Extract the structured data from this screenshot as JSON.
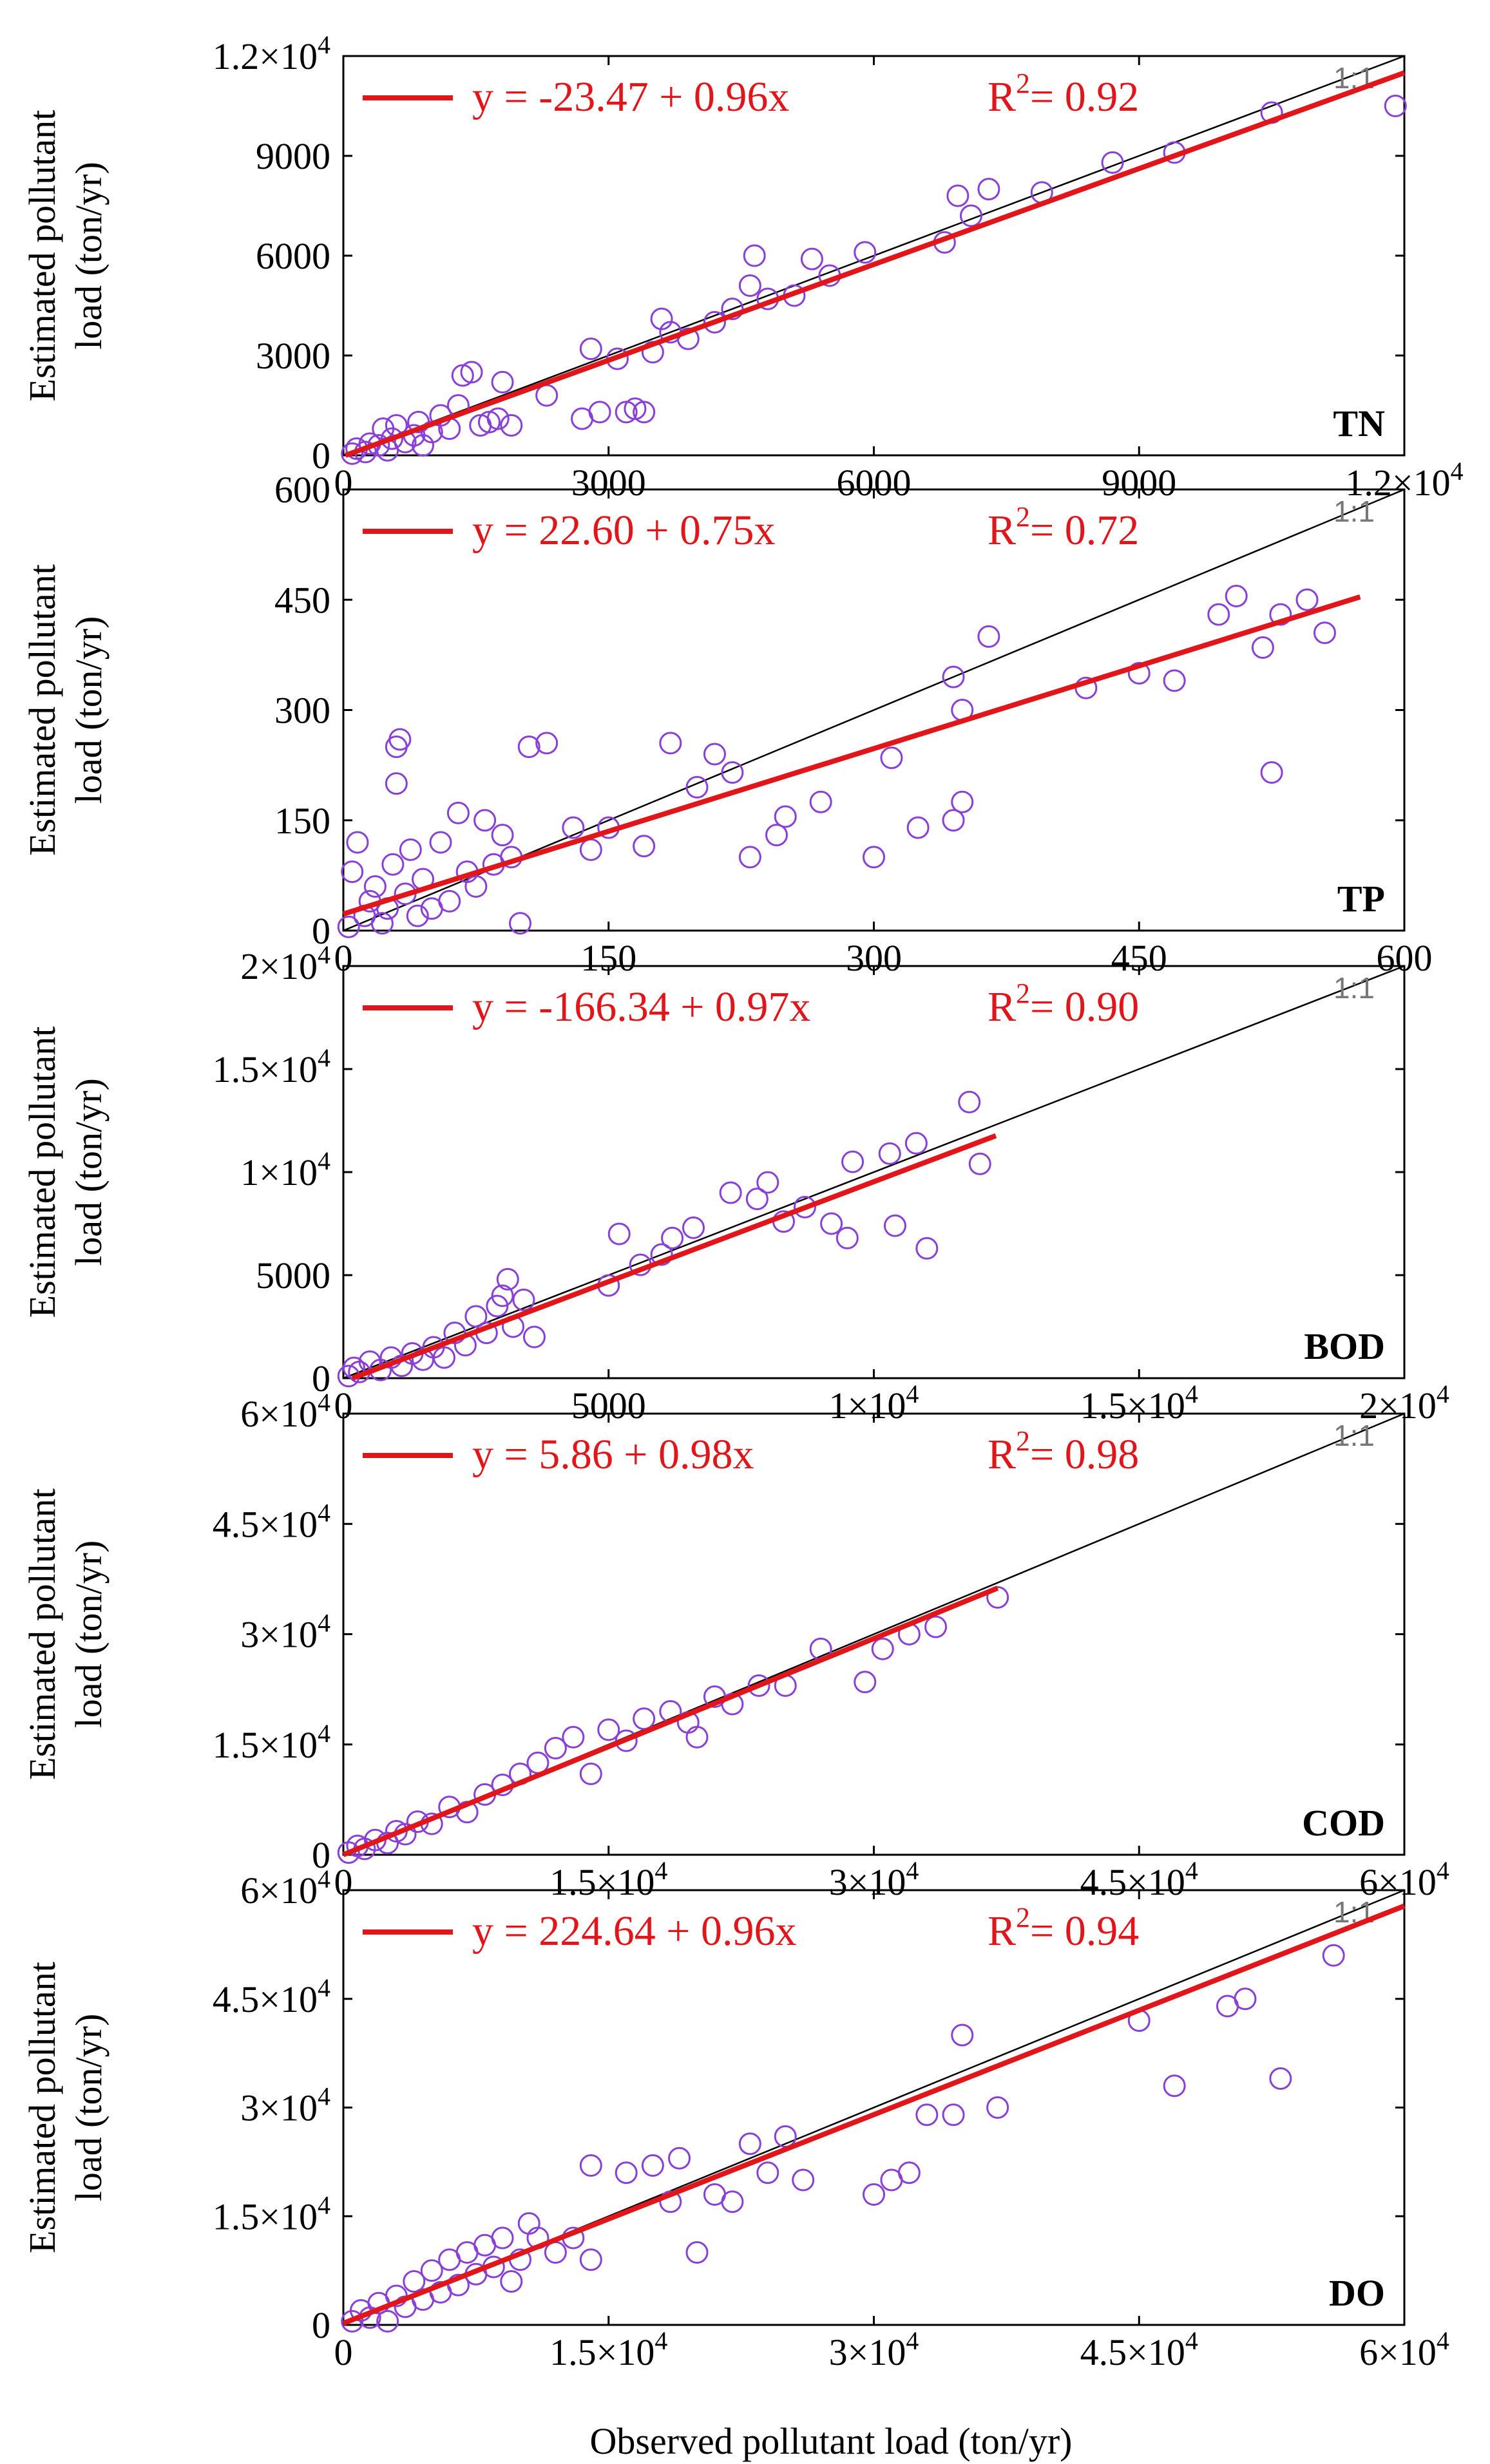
{
  "x_axis_label": "Observed pollutant load (ton/yr)",
  "colors": {
    "points": "#8a3fd6",
    "fit_line": "#e0161b",
    "one_to_one": "#000000"
  },
  "chart_data": [
    {
      "type": "scatter",
      "pollutant": "TN",
      "one_to_one_label": "1:1",
      "ylabel": "Estimated pollutant load (ton/yr)",
      "xlim": [
        0,
        12000
      ],
      "ylim": [
        0,
        12000
      ],
      "xticks": [
        0,
        3000,
        6000,
        9000,
        12000
      ],
      "xtick_labels": [
        "0",
        "3000",
        "6000",
        "9000",
        "1.2×10^4"
      ],
      "yticks": [
        0,
        3000,
        6000,
        9000,
        12000
      ],
      "ytick_labels": [
        "0",
        "3000",
        "6000",
        "9000",
        "1.2×10^4"
      ],
      "fit": {
        "intercept": -23.47,
        "slope": 0.96,
        "x_end": 12000
      },
      "equation": "y = -23.47 + 0.96x",
      "r2": "0.92",
      "points": [
        [
          100,
          50
        ],
        [
          150,
          200
        ],
        [
          250,
          100
        ],
        [
          300,
          350
        ],
        [
          400,
          300
        ],
        [
          450,
          800
        ],
        [
          500,
          150
        ],
        [
          550,
          500
        ],
        [
          600,
          900
        ],
        [
          700,
          400
        ],
        [
          800,
          600
        ],
        [
          850,
          1000
        ],
        [
          900,
          300
        ],
        [
          1000,
          700
        ],
        [
          1100,
          1200
        ],
        [
          1200,
          800
        ],
        [
          1300,
          1500
        ],
        [
          1350,
          2400
        ],
        [
          1450,
          2500
        ],
        [
          1550,
          900
        ],
        [
          1650,
          1000
        ],
        [
          1750,
          1100
        ],
        [
          1800,
          2200
        ],
        [
          1900,
          900
        ],
        [
          2300,
          1800
        ],
        [
          2700,
          1100
        ],
        [
          2800,
          3200
        ],
        [
          2900,
          1300
        ],
        [
          3100,
          2900
        ],
        [
          3200,
          1300
        ],
        [
          3300,
          1400
        ],
        [
          3400,
          1300
        ],
        [
          3500,
          3100
        ],
        [
          3600,
          4100
        ],
        [
          3700,
          3700
        ],
        [
          3900,
          3500
        ],
        [
          4200,
          4000
        ],
        [
          4400,
          4400
        ],
        [
          4600,
          5100
        ],
        [
          4650,
          6000
        ],
        [
          4800,
          4700
        ],
        [
          5100,
          4800
        ],
        [
          5300,
          5900
        ],
        [
          5500,
          5400
        ],
        [
          5900,
          6100
        ],
        [
          6800,
          6400
        ],
        [
          6950,
          7800
        ],
        [
          7100,
          7200
        ],
        [
          7300,
          8000
        ],
        [
          7900,
          7900
        ],
        [
          8700,
          8800
        ],
        [
          9400,
          9100
        ],
        [
          10500,
          10300
        ],
        [
          11900,
          10500
        ]
      ]
    },
    {
      "type": "scatter",
      "pollutant": "TP",
      "one_to_one_label": "1:1",
      "ylabel": "Estimated pollutant load (ton/yr)",
      "xlim": [
        0,
        600
      ],
      "ylim": [
        0,
        600
      ],
      "xticks": [
        0,
        150,
        300,
        450,
        600
      ],
      "xtick_labels": [
        "0",
        "150",
        "300",
        "450",
        "600"
      ],
      "yticks": [
        0,
        150,
        300,
        450,
        600
      ],
      "ytick_labels": [
        "0",
        "150",
        "300",
        "450",
        "600"
      ],
      "fit": {
        "intercept": 22.6,
        "slope": 0.75,
        "x_end": 575
      },
      "equation": "y = 22.60 + 0.75x",
      "r2": "0.72",
      "points": [
        [
          3,
          5
        ],
        [
          5,
          80
        ],
        [
          8,
          120
        ],
        [
          12,
          20
        ],
        [
          15,
          40
        ],
        [
          18,
          60
        ],
        [
          22,
          10
        ],
        [
          25,
          30
        ],
        [
          28,
          90
        ],
        [
          30,
          200
        ],
        [
          30,
          250
        ],
        [
          32,
          260
        ],
        [
          35,
          50
        ],
        [
          38,
          110
        ],
        [
          42,
          20
        ],
        [
          45,
          70
        ],
        [
          50,
          30
        ],
        [
          55,
          120
        ],
        [
          60,
          40
        ],
        [
          65,
          160
        ],
        [
          70,
          80
        ],
        [
          75,
          60
        ],
        [
          80,
          150
        ],
        [
          85,
          90
        ],
        [
          90,
          130
        ],
        [
          95,
          100
        ],
        [
          100,
          10
        ],
        [
          105,
          250
        ],
        [
          115,
          255
        ],
        [
          130,
          140
        ],
        [
          140,
          110
        ],
        [
          150,
          140
        ],
        [
          170,
          115
        ],
        [
          185,
          255
        ],
        [
          200,
          195
        ],
        [
          210,
          240
        ],
        [
          220,
          215
        ],
        [
          230,
          100
        ],
        [
          245,
          130
        ],
        [
          250,
          155
        ],
        [
          270,
          175
        ],
        [
          300,
          100
        ],
        [
          310,
          235
        ],
        [
          325,
          140
        ],
        [
          345,
          150
        ],
        [
          345,
          345
        ],
        [
          350,
          300
        ],
        [
          350,
          175
        ],
        [
          365,
          400
        ],
        [
          420,
          330
        ],
        [
          450,
          350
        ],
        [
          470,
          340
        ],
        [
          495,
          430
        ],
        [
          505,
          455
        ],
        [
          520,
          385
        ],
        [
          525,
          215
        ],
        [
          530,
          430
        ],
        [
          545,
          450
        ],
        [
          555,
          405
        ]
      ]
    },
    {
      "type": "scatter",
      "pollutant": "BOD",
      "one_to_one_label": "1:1",
      "ylabel": "Estimated pollutant load (ton/yr)",
      "xlim": [
        0,
        20000
      ],
      "ylim": [
        0,
        20000
      ],
      "xticks": [
        0,
        5000,
        10000,
        15000,
        20000
      ],
      "xtick_labels": [
        "0",
        "5000",
        "1×10^4",
        "1.5×10^4",
        "2×10^4"
      ],
      "yticks": [
        0,
        5000,
        10000,
        15000,
        20000
      ],
      "ytick_labels": [
        "0",
        "5000",
        "1×10^4",
        "1.5×10^4",
        "2×10^4"
      ],
      "fit": {
        "intercept": -166.34,
        "slope": 0.97,
        "x_end": 12300
      },
      "equation": "y = -166.34 + 0.97x",
      "r2": "0.90",
      "points": [
        [
          100,
          100
        ],
        [
          200,
          500
        ],
        [
          300,
          300
        ],
        [
          500,
          800
        ],
        [
          700,
          400
        ],
        [
          900,
          1000
        ],
        [
          1100,
          600
        ],
        [
          1300,
          1200
        ],
        [
          1500,
          900
        ],
        [
          1700,
          1500
        ],
        [
          1900,
          1000
        ],
        [
          2100,
          2200
        ],
        [
          2300,
          1600
        ],
        [
          2500,
          3000
        ],
        [
          2700,
          2200
        ],
        [
          2900,
          3500
        ],
        [
          3000,
          4000
        ],
        [
          3100,
          4800
        ],
        [
          3200,
          2500
        ],
        [
          3400,
          3800
        ],
        [
          3600,
          2000
        ],
        [
          5000,
          4500
        ],
        [
          5200,
          7000
        ],
        [
          5600,
          5500
        ],
        [
          6000,
          6000
        ],
        [
          6200,
          6800
        ],
        [
          6600,
          7300
        ],
        [
          7300,
          9000
        ],
        [
          7800,
          8700
        ],
        [
          8000,
          9500
        ],
        [
          8300,
          7600
        ],
        [
          8700,
          8300
        ],
        [
          9200,
          7500
        ],
        [
          9500,
          6800
        ],
        [
          9600,
          10500
        ],
        [
          10300,
          10900
        ],
        [
          10400,
          7400
        ],
        [
          10800,
          11400
        ],
        [
          11000,
          6300
        ],
        [
          11800,
          13400
        ],
        [
          12000,
          10400
        ]
      ]
    },
    {
      "type": "scatter",
      "pollutant": "COD",
      "one_to_one_label": "1:1",
      "ylabel": "Estimated pollutant load (ton/yr)",
      "xlim": [
        0,
        60000
      ],
      "ylim": [
        0,
        60000
      ],
      "xticks": [
        0,
        15000,
        30000,
        45000,
        60000
      ],
      "xtick_labels": [
        "0",
        "1.5×10^4",
        "3×10^4",
        "4.5×10^4",
        "6×10^4"
      ],
      "yticks": [
        0,
        15000,
        30000,
        45000,
        60000
      ],
      "ytick_labels": [
        "0",
        "1.5×10^4",
        "3×10^4",
        "4.5×10^4",
        "6×10^4"
      ],
      "fit": {
        "intercept": 5.86,
        "slope": 0.98,
        "x_end": 37000
      },
      "equation": "y = 5.86 + 0.98x",
      "r2": "0.98",
      "points": [
        [
          300,
          300
        ],
        [
          800,
          1200
        ],
        [
          1200,
          800
        ],
        [
          1800,
          2000
        ],
        [
          2500,
          1600
        ],
        [
          3000,
          3200
        ],
        [
          3500,
          2800
        ],
        [
          4200,
          4500
        ],
        [
          5000,
          4200
        ],
        [
          6000,
          6500
        ],
        [
          7000,
          5800
        ],
        [
          8000,
          8200
        ],
        [
          9000,
          9500
        ],
        [
          10000,
          11000
        ],
        [
          11000,
          12500
        ],
        [
          12000,
          14500
        ],
        [
          13000,
          16000
        ],
        [
          14000,
          11000
        ],
        [
          15000,
          17000
        ],
        [
          16000,
          15500
        ],
        [
          17000,
          18500
        ],
        [
          18500,
          19500
        ],
        [
          19500,
          18000
        ],
        [
          20000,
          16000
        ],
        [
          21000,
          21500
        ],
        [
          22000,
          20500
        ],
        [
          23500,
          23000
        ],
        [
          25000,
          23000
        ],
        [
          27000,
          28000
        ],
        [
          29500,
          23500
        ],
        [
          30500,
          28000
        ],
        [
          32000,
          30000
        ],
        [
          33500,
          31000
        ],
        [
          37000,
          35000
        ]
      ]
    },
    {
      "type": "scatter",
      "pollutant": "DO",
      "one_to_one_label": "1:1",
      "ylabel": "Estimated pollutant load (ton/yr)",
      "xlim": [
        0,
        60000
      ],
      "ylim": [
        0,
        60000
      ],
      "xticks": [
        0,
        15000,
        30000,
        45000,
        60000
      ],
      "xtick_labels": [
        "0",
        "1.5×10^4",
        "3×10^4",
        "4.5×10^4",
        "6×10^4"
      ],
      "yticks": [
        0,
        15000,
        30000,
        45000,
        60000
      ],
      "ytick_labels": [
        "0",
        "1.5×10^4",
        "3×10^4",
        "4.5×10^4",
        "6×10^4"
      ],
      "fit": {
        "intercept": 224.64,
        "slope": 0.96,
        "x_end": 60000
      },
      "equation": "y = 224.64 + 0.96x",
      "r2": "0.94",
      "points": [
        [
          500,
          500
        ],
        [
          1000,
          2000
        ],
        [
          1500,
          1000
        ],
        [
          2000,
          3000
        ],
        [
          2500,
          500
        ],
        [
          3000,
          4000
        ],
        [
          3500,
          2500
        ],
        [
          4000,
          6000
        ],
        [
          4500,
          3500
        ],
        [
          5000,
          7500
        ],
        [
          5500,
          4500
        ],
        [
          6000,
          9000
        ],
        [
          6500,
          5500
        ],
        [
          7000,
          10000
        ],
        [
          7500,
          7000
        ],
        [
          8000,
          11000
        ],
        [
          8500,
          8000
        ],
        [
          9000,
          12000
        ],
        [
          9500,
          6000
        ],
        [
          10000,
          9000
        ],
        [
          10500,
          14000
        ],
        [
          11000,
          12000
        ],
        [
          12000,
          10000
        ],
        [
          13000,
          12000
        ],
        [
          14000,
          9000
        ],
        [
          14000,
          22000
        ],
        [
          16000,
          21000
        ],
        [
          17500,
          22000
        ],
        [
          18500,
          17000
        ],
        [
          19000,
          23000
        ],
        [
          20000,
          10000
        ],
        [
          21000,
          18000
        ],
        [
          22000,
          17000
        ],
        [
          23000,
          25000
        ],
        [
          24000,
          21000
        ],
        [
          25000,
          26000
        ],
        [
          26000,
          20000
        ],
        [
          30000,
          18000
        ],
        [
          31000,
          20000
        ],
        [
          32000,
          21000
        ],
        [
          33000,
          29000
        ],
        [
          34500,
          29000
        ],
        [
          35000,
          40000
        ],
        [
          37000,
          30000
        ],
        [
          45000,
          42000
        ],
        [
          47000,
          33000
        ],
        [
          50000,
          44000
        ],
        [
          51000,
          45000
        ],
        [
          53000,
          34000
        ],
        [
          56000,
          51000
        ]
      ]
    }
  ]
}
